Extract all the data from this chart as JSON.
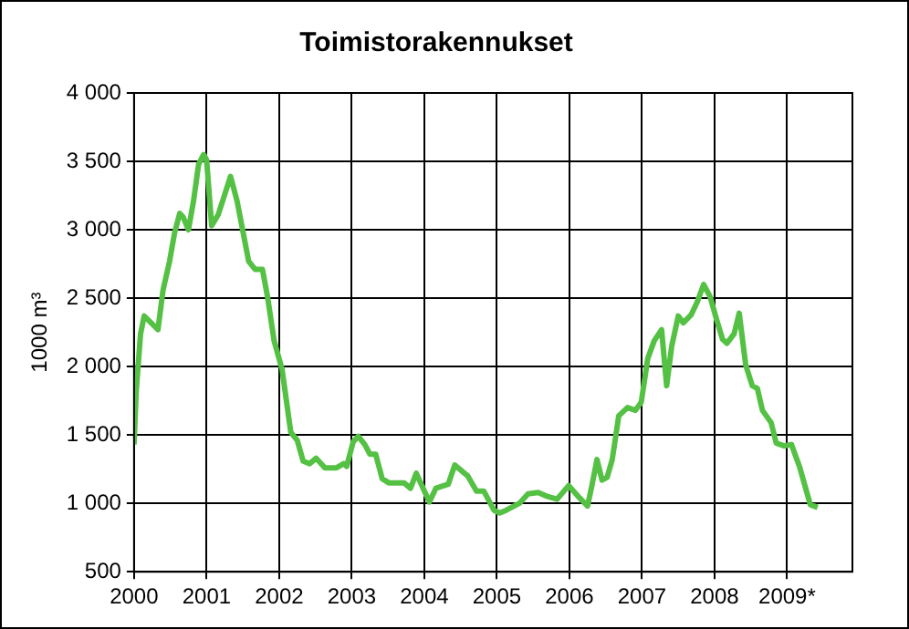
{
  "chart_data": {
    "type": "line",
    "title": "Toimistorakennukset",
    "ylabel": "1000 m³",
    "xlim": [
      2000,
      2009.9
    ],
    "xticks": [
      2000,
      2001,
      2002,
      2003,
      2004,
      2005,
      2006,
      2007,
      2008,
      {
        "value": 2009,
        "label": "2009*"
      }
    ],
    "ylim": [
      500,
      4000
    ],
    "yticks": [
      500,
      {
        "value": 1000,
        "label": "1 000"
      },
      {
        "value": 1500,
        "label": "1 500"
      },
      {
        "value": 2000,
        "label": "2 000"
      },
      {
        "value": 2500,
        "label": "2 500"
      },
      {
        "value": 3000,
        "label": "3 000"
      },
      {
        "value": 3500,
        "label": "3 500"
      },
      {
        "value": 4000,
        "label": "4 000"
      }
    ],
    "grid": true,
    "legend": false,
    "marker": "none",
    "line_style": "solid",
    "series": [
      {
        "color": "#55c144",
        "x": [
          2000.0,
          2000.03,
          2000.09,
          2000.14,
          2000.33,
          2000.4,
          2000.49,
          2000.56,
          2000.63,
          2000.68,
          2000.75,
          2000.82,
          2000.89,
          2000.96,
          2001.0,
          2001.07,
          2001.16,
          2001.33,
          2001.42,
          2001.58,
          2001.67,
          2001.77,
          2001.84,
          2001.93,
          2002.04,
          2002.16,
          2002.25,
          2002.33,
          2002.42,
          2002.51,
          2002.63,
          2002.79,
          2002.89,
          2002.93,
          2003.02,
          2003.09,
          2003.18,
          2003.25,
          2003.33,
          2003.42,
          2003.51,
          2003.72,
          2003.81,
          2003.89,
          2004.07,
          2004.16,
          2004.33,
          2004.42,
          2004.6,
          2004.72,
          2004.82,
          2004.96,
          2005.04,
          2005.13,
          2005.31,
          2005.43,
          2005.57,
          2005.7,
          2005.83,
          2005.99,
          2006.14,
          2006.25,
          2006.31,
          2006.38,
          2006.45,
          2006.52,
          2006.59,
          2006.68,
          2006.8,
          2006.91,
          2006.99,
          2007.08,
          2007.17,
          2007.27,
          2007.34,
          2007.41,
          2007.5,
          2007.57,
          2007.68,
          2007.76,
          2007.85,
          2007.94,
          2008.03,
          2008.11,
          2008.17,
          2008.27,
          2008.34,
          2008.43,
          2008.52,
          2008.59,
          2008.66,
          2008.78,
          2008.85,
          2008.96,
          2009.06,
          2009.17,
          2009.32,
          2009.42
        ],
        "values": [
          1430,
          1820,
          2240,
          2370,
          2270,
          2560,
          2770,
          2980,
          3120,
          3090,
          3000,
          3210,
          3480,
          3550,
          3510,
          3030,
          3110,
          3390,
          3210,
          2770,
          2710,
          2710,
          2510,
          2190,
          1980,
          1520,
          1460,
          1310,
          1290,
          1330,
          1260,
          1260,
          1290,
          1270,
          1450,
          1490,
          1430,
          1360,
          1360,
          1180,
          1150,
          1150,
          1110,
          1220,
          1010,
          1110,
          1140,
          1280,
          1200,
          1090,
          1090,
          950,
          930,
          950,
          1000,
          1070,
          1080,
          1050,
          1030,
          1130,
          1040,
          980,
          1130,
          1320,
          1170,
          1190,
          1320,
          1640,
          1700,
          1680,
          1740,
          2060,
          2190,
          2270,
          1860,
          2150,
          2370,
          2320,
          2380,
          2470,
          2600,
          2510,
          2340,
          2200,
          2170,
          2240,
          2390,
          2010,
          1860,
          1840,
          1680,
          1590,
          1440,
          1420,
          1430,
          1270,
          990,
          970
        ]
      }
    ]
  }
}
